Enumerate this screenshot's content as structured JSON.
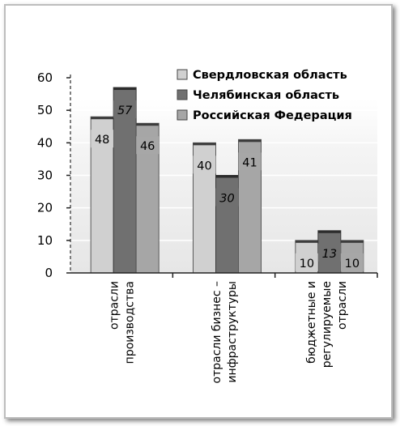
{
  "chart_data": {
    "type": "bar",
    "categories": [
      [
        "отрасли",
        "производства"
      ],
      [
        "отрасли бизнес –",
        "инфраструктуры"
      ],
      [
        "бюджетные и",
        "регулируемые",
        "отрасли"
      ]
    ],
    "series": [
      {
        "name": "Свердловская область",
        "values": [
          48,
          40,
          10
        ],
        "color": "#d0d0d0"
      },
      {
        "name": "Челябинская область",
        "values": [
          57,
          30,
          13
        ],
        "color": "#707070"
      },
      {
        "name": "Российская Федерация",
        "values": [
          46,
          41,
          10
        ],
        "color": "#a6a6a6"
      }
    ],
    "value_labels_italic": [
      false,
      true,
      false
    ],
    "ylim": [
      0,
      60
    ],
    "yticks": [
      0,
      10,
      20,
      30,
      40,
      50,
      60
    ],
    "grid": true,
    "legend_position": "top-right",
    "title": "",
    "xlabel": "",
    "ylabel": ""
  }
}
